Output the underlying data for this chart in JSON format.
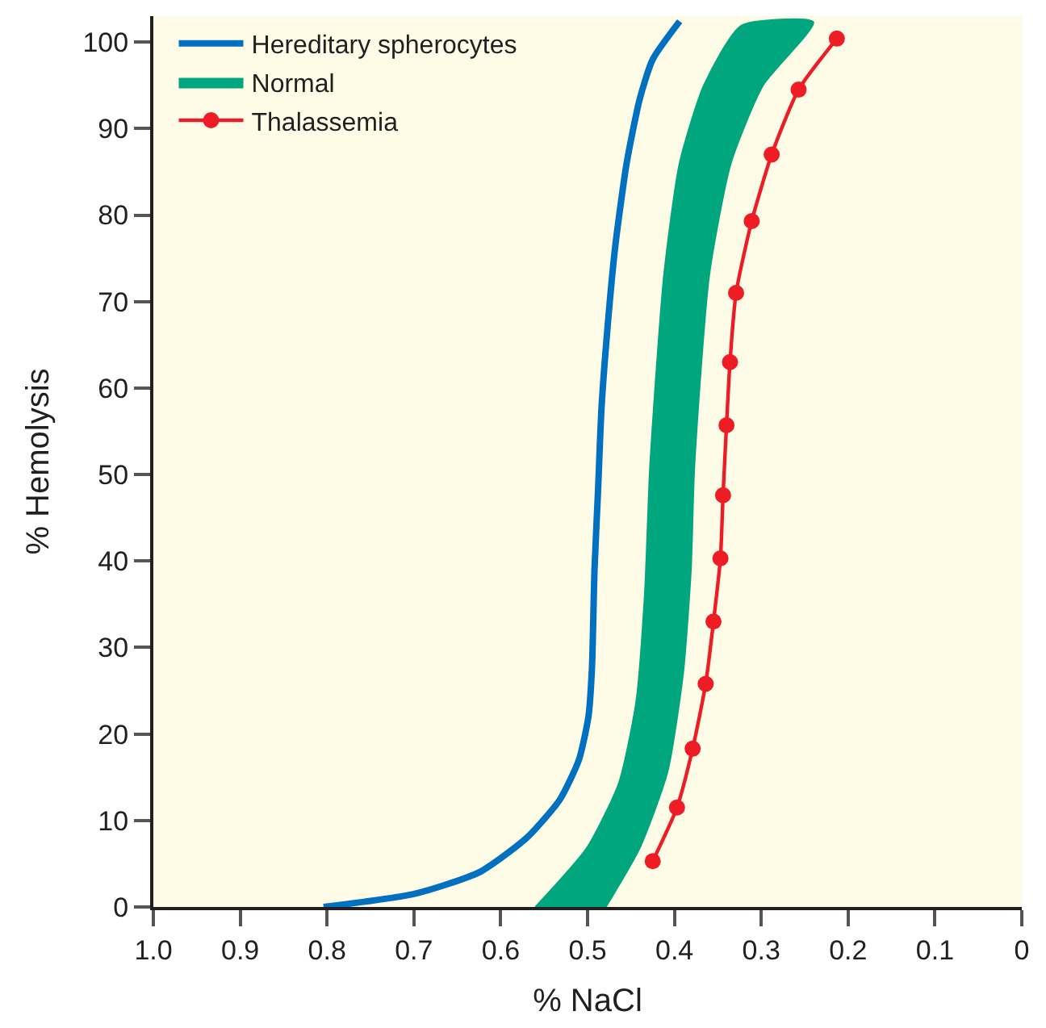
{
  "chart_data": {
    "type": "line",
    "xlabel": "% NaCl",
    "ylabel": "% Hemolysis",
    "xlim": [
      1.0,
      0
    ],
    "ylim": [
      0,
      103
    ],
    "xticks": [
      {
        "value": 1.0,
        "label": "1.0"
      },
      0.9,
      0.8,
      0.7,
      0.6,
      0.5,
      0.4,
      0.3,
      0.2,
      0.1,
      0
    ],
    "yticks": [
      0,
      10,
      20,
      30,
      40,
      50,
      60,
      70,
      80,
      90,
      100
    ],
    "grid": false,
    "legend": "top left",
    "series": [
      {
        "name": "Hereditary spherocytes",
        "color": "#0070c0",
        "marker": "none",
        "x": [
          0.804,
          0.7,
          0.625,
          0.57,
          0.532,
          0.51,
          0.499,
          0.495,
          0.492,
          0.488,
          0.484,
          0.477,
          0.468,
          0.455,
          0.44,
          0.425,
          0.394
        ],
        "values": [
          0,
          1.5,
          4,
          8,
          12.4,
          17,
          22,
          27.5,
          39,
          48,
          57.6,
          67,
          76.5,
          86,
          93.4,
          98,
          102.4
        ]
      },
      {
        "name": "Normal",
        "type": "area",
        "color": "#00a67e",
        "x": [
          0.56,
          0.501,
          0.464,
          0.444,
          0.434,
          0.428,
          0.412,
          0.394,
          0.366,
          0.323,
          0.24,
          0.298,
          0.335,
          0.36,
          0.377,
          0.381,
          0.39,
          0.408,
          0.44,
          0.479
        ],
        "values": [
          0,
          6.8,
          14.3,
          23.7,
          36.3,
          51,
          73,
          86,
          95,
          101.9,
          102.3,
          95,
          86,
          73,
          51,
          39,
          27,
          15.6,
          6.8,
          0
        ]
      },
      {
        "name": "Thalassemia",
        "color": "#ee1c25",
        "marker": "circle",
        "x": [
          0.425,
          0.397,
          0.379,
          0.364,
          0.355,
          0.347,
          0.344,
          0.34,
          0.336,
          0.329,
          0.311,
          0.288,
          0.257,
          0.213
        ],
        "values": [
          5.3,
          11.5,
          18.3,
          25.8,
          33,
          40.3,
          47.6,
          55.7,
          63,
          71,
          79.3,
          87,
          94.5,
          100.4
        ]
      }
    ]
  }
}
